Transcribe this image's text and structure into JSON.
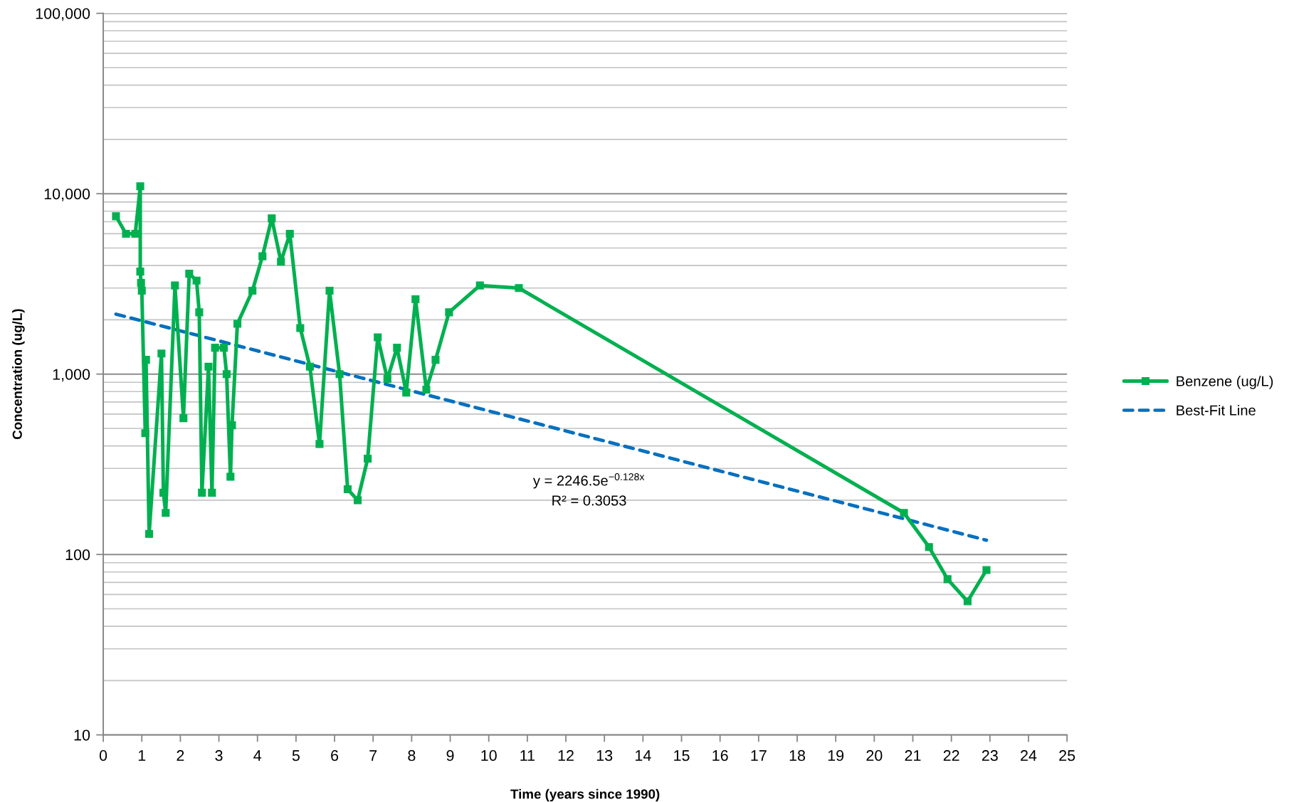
{
  "chart_data": {
    "type": "line",
    "xlabel": "Time (years since 1990)",
    "ylabel": "Concentration (ug/L)",
    "annotations": [
      "y = 2246.5e$^{−0.128x}$",
      "R² = 0.3053"
    ],
    "series": [
      {
        "name": "Benzene (ug/L)",
        "color": "#00b050",
        "marker": "square",
        "line_style": "solid",
        "x": [
          0.33,
          0.59,
          0.83,
          0.96,
          0.96,
          0.98,
          1.0,
          1.09,
          1.11,
          1.19,
          1.51,
          1.56,
          1.62,
          1.86,
          2.08,
          2.23,
          2.42,
          2.49,
          2.56,
          2.73,
          2.82,
          2.9,
          3.13,
          3.2,
          3.3,
          3.34,
          3.48,
          3.87,
          4.13,
          4.37,
          4.61,
          4.84,
          5.11,
          5.36,
          5.61,
          5.87,
          6.13,
          6.34,
          6.6,
          6.86,
          7.12,
          7.37,
          7.62,
          7.86,
          8.1,
          8.38,
          8.62,
          8.97,
          9.77,
          10.78,
          20.77,
          21.42,
          21.9,
          22.42,
          22.91
        ],
        "values": [
          7500,
          6000,
          6000,
          11000,
          3700,
          3200,
          2900,
          470,
          1200,
          130,
          1300,
          220,
          170,
          3100,
          570,
          3600,
          3300,
          2200,
          220,
          1100,
          220,
          1400,
          1400,
          1000,
          270,
          520,
          1900,
          2900,
          4500,
          7300,
          4200,
          6000,
          1800,
          1100,
          410,
          2900,
          1000,
          230,
          200,
          340,
          1600,
          940,
          1400,
          790,
          2600,
          820,
          1200,
          2200,
          3100,
          3000,
          170,
          110,
          73,
          55,
          82
        ]
      },
      {
        "name": "Best-Fit Line",
        "color": "#0070c0",
        "marker": "none",
        "line_style": "dashed",
        "x": [
          0.33,
          22.91
        ],
        "values": [
          2150,
          120
        ]
      }
    ],
    "xlim": [
      0,
      25
    ],
    "xticks": [
      0,
      1,
      2,
      3,
      4,
      5,
      6,
      7,
      8,
      9,
      10,
      11,
      12,
      13,
      14,
      15,
      16,
      17,
      18,
      19,
      20,
      21,
      22,
      23,
      24,
      25
    ],
    "ylim": [
      10,
      100000
    ],
    "yticks": [
      10,
      100,
      {
        "value": 1000,
        "label": "1,000"
      },
      {
        "value": 10000,
        "label": "10,000"
      },
      {
        "value": 100000,
        "label": "100,000"
      }
    ],
    "log": "y",
    "grid": "y",
    "legend": "right"
  }
}
